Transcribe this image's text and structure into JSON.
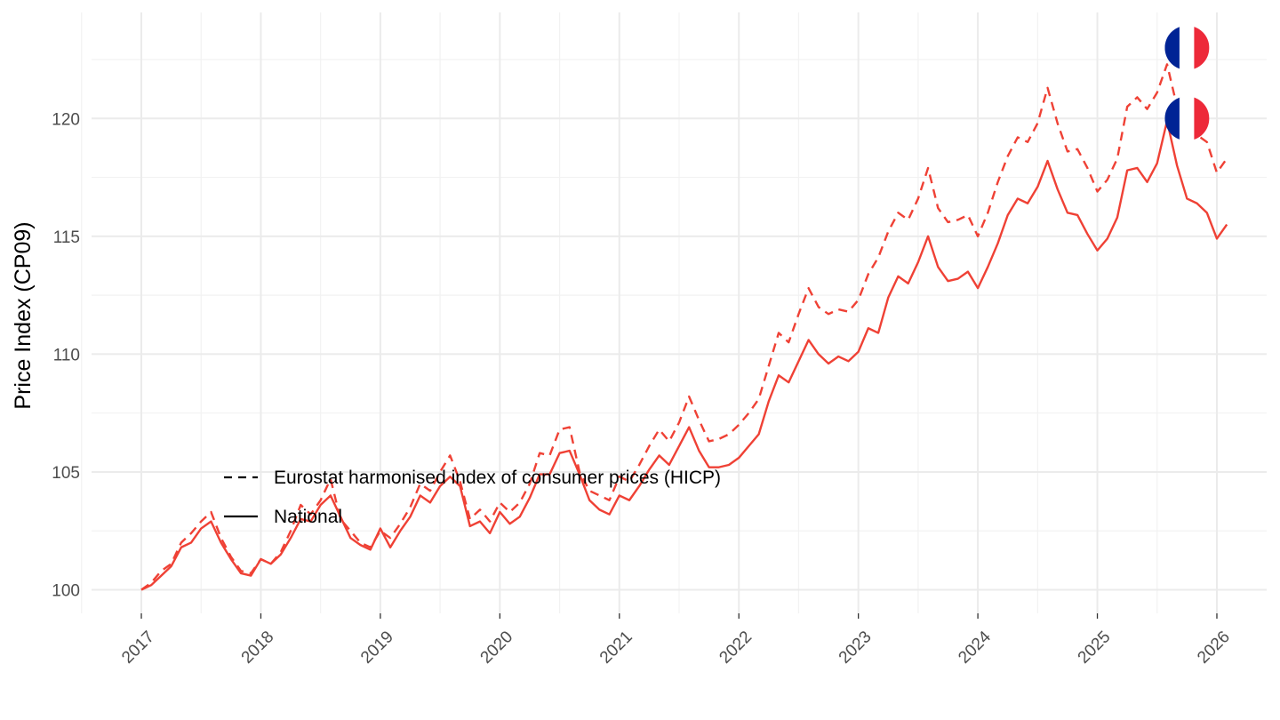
{
  "chart_data": {
    "type": "line",
    "title": "",
    "xlabel": "",
    "ylabel": "Price Index (CP09)",
    "x_start": "2017-01",
    "x_frequency": "monthly",
    "x_tick_labels": [
      "2017",
      "2018",
      "2019",
      "2020",
      "2021",
      "2022",
      "2023",
      "2024",
      "2025",
      "2026"
    ],
    "y_ticks": [
      100,
      105,
      110,
      115,
      120
    ],
    "xlim": [
      "2016-08",
      "2026-06"
    ],
    "ylim": [
      99,
      124.5
    ],
    "grid": true,
    "legend_position": "inside-bottom-left",
    "line_color": "#EF4135",
    "series": [
      {
        "name": "Eurostat harmonised index of consumer prices (HICP)",
        "linestyle": "dashed",
        "values": [
          100.0,
          100.3,
          100.8,
          101.1,
          102.0,
          102.4,
          102.9,
          103.3,
          102.2,
          101.4,
          100.8,
          100.7,
          101.3,
          101.1,
          101.6,
          102.5,
          103.6,
          103.2,
          103.8,
          104.7,
          103.0,
          102.5,
          102.0,
          101.8,
          102.5,
          102.2,
          102.8,
          103.5,
          104.5,
          104.2,
          105.0,
          105.7,
          104.6,
          103.0,
          103.4,
          102.9,
          103.7,
          103.3,
          103.7,
          104.5,
          105.8,
          105.7,
          106.8,
          106.9,
          105.0,
          104.2,
          104.0,
          103.8,
          104.8,
          104.6,
          105.3,
          106.1,
          106.8,
          106.3,
          107.1,
          108.2,
          107.2,
          106.3,
          106.4,
          106.6,
          107.0,
          107.5,
          108.1,
          109.5,
          110.9,
          110.5,
          111.7,
          112.8,
          112.0,
          111.7,
          111.9,
          111.8,
          112.3,
          113.4,
          114.1,
          115.2,
          116.0,
          115.7,
          116.6,
          117.9,
          116.2,
          115.6,
          115.7,
          115.9,
          115.0,
          116.0,
          117.3,
          118.4,
          119.2,
          119.0,
          119.8,
          121.3,
          119.8,
          118.6,
          118.7,
          117.9,
          116.9,
          117.4,
          118.3,
          120.5,
          120.9,
          120.4,
          121.1,
          122.3,
          120.5,
          119.6,
          119.3,
          119.0,
          117.7,
          118.3
        ]
      },
      {
        "name": "National",
        "linestyle": "solid",
        "values": [
          100.0,
          100.2,
          100.6,
          101.0,
          101.8,
          102.0,
          102.6,
          102.9,
          102.0,
          101.3,
          100.7,
          100.6,
          101.3,
          101.1,
          101.5,
          102.2,
          103.0,
          102.9,
          103.6,
          104.0,
          103.1,
          102.2,
          101.9,
          101.7,
          102.6,
          101.8,
          102.5,
          103.1,
          104.0,
          103.7,
          104.4,
          104.8,
          104.4,
          102.7,
          102.9,
          102.4,
          103.3,
          102.8,
          103.1,
          103.9,
          104.9,
          104.9,
          105.8,
          105.9,
          104.9,
          103.8,
          103.4,
          103.2,
          104.0,
          103.8,
          104.4,
          105.1,
          105.7,
          105.3,
          106.1,
          106.9,
          105.9,
          105.2,
          105.2,
          105.3,
          105.6,
          106.1,
          106.6,
          108.0,
          109.1,
          108.8,
          109.7,
          110.6,
          110.0,
          109.6,
          109.9,
          109.7,
          110.1,
          111.1,
          110.9,
          112.4,
          113.3,
          113.0,
          113.9,
          115.0,
          113.7,
          113.1,
          113.2,
          113.5,
          112.8,
          113.7,
          114.7,
          115.9,
          116.6,
          116.4,
          117.1,
          118.2,
          117.0,
          116.0,
          115.9,
          115.1,
          114.4,
          114.9,
          115.8,
          117.8,
          117.9,
          117.3,
          118.1,
          119.9,
          118.0,
          116.6,
          116.4,
          116.0,
          114.9,
          115.5
        ]
      }
    ],
    "end_markers": [
      {
        "icon": "france-flag-icon",
        "series": "Eurostat harmonised index of consumer prices (HICP)",
        "value": 123.0
      },
      {
        "icon": "france-flag-icon",
        "series": "National",
        "value": 120.0
      }
    ]
  }
}
